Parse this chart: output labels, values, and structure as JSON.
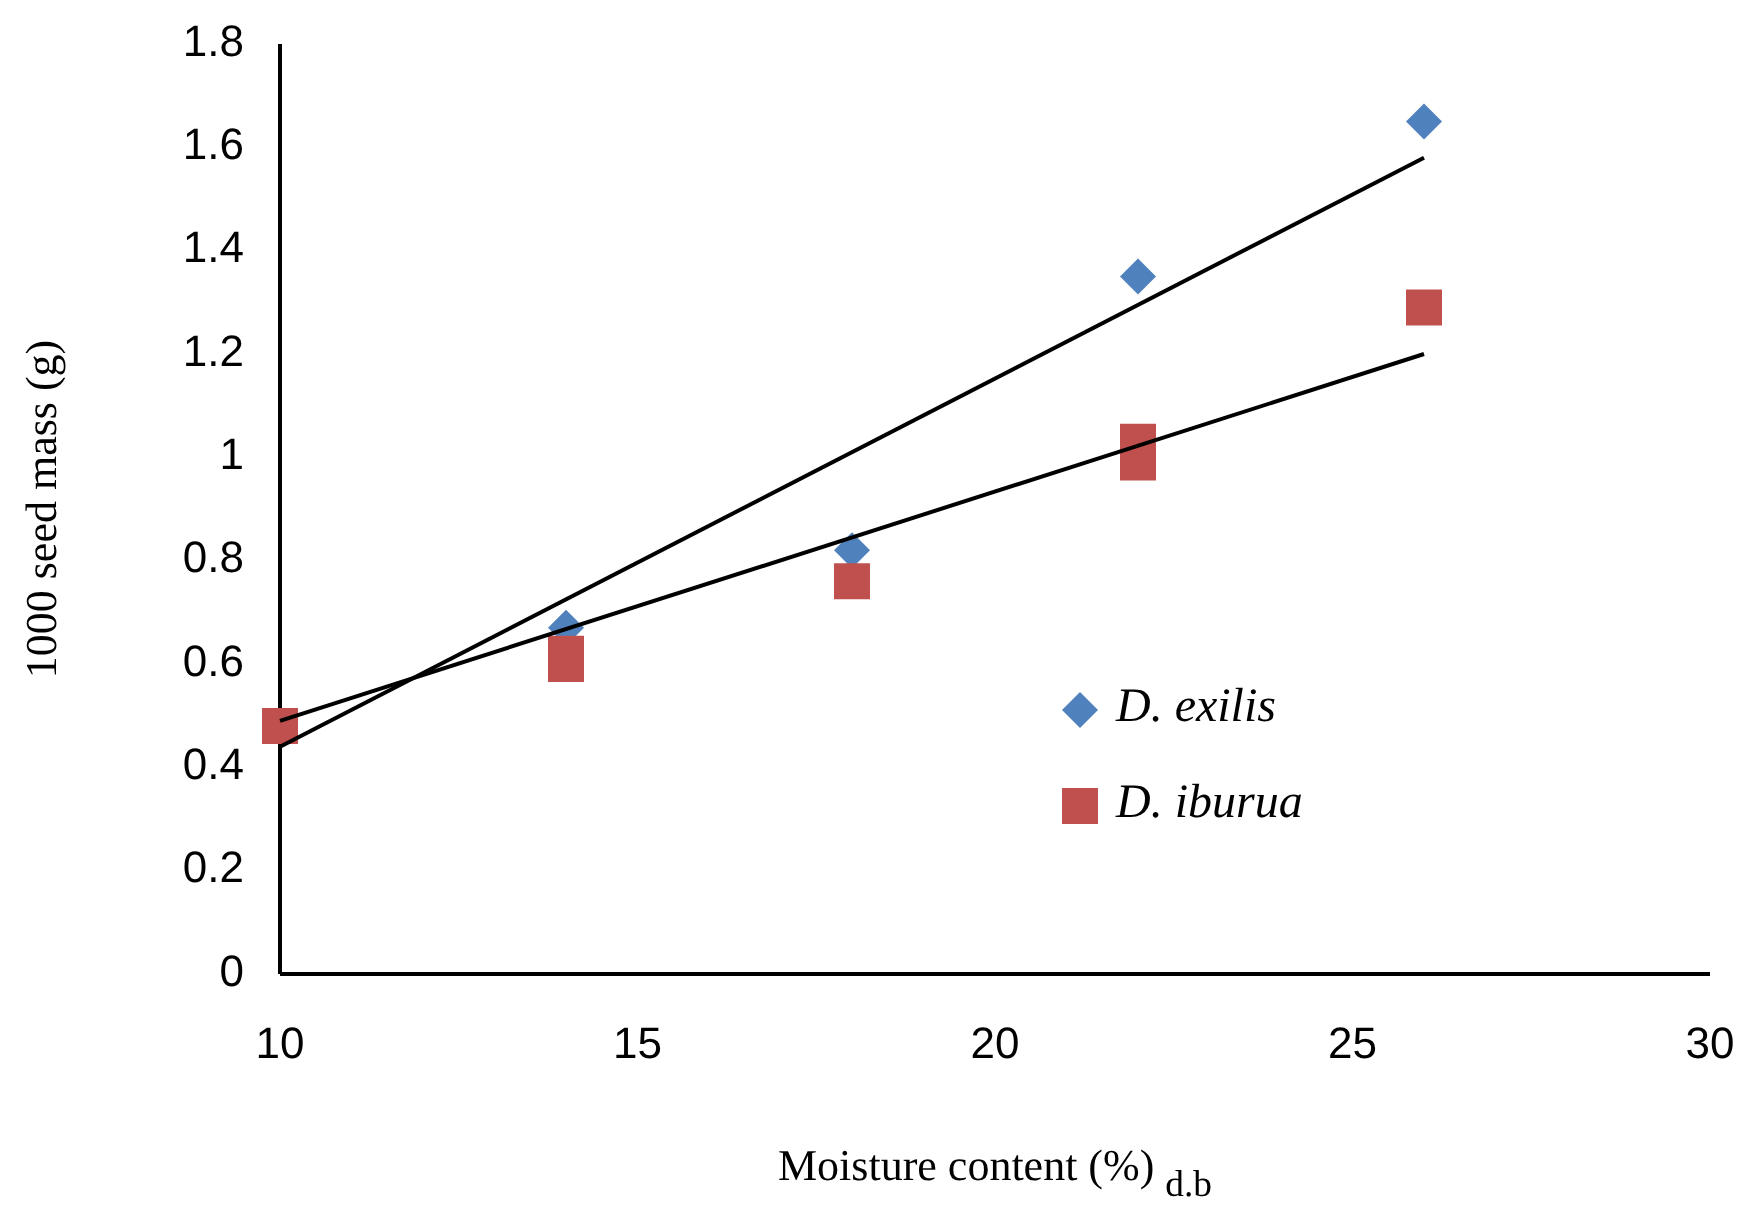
{
  "chart_data": {
    "type": "scatter",
    "xlabel": "Moisture content (%) $_{d.b}$",
    "ylabel": "1000 seed mass (g)",
    "xlim": [
      10,
      30
    ],
    "xticks": [
      10,
      15,
      20,
      25,
      30
    ],
    "ylim": [
      0,
      1.8
    ],
    "yticks": [
      0,
      0.2,
      0.4,
      0.6,
      0.8,
      1,
      1.2,
      1.4,
      1.6,
      1.8
    ],
    "grid": false,
    "legend": "right",
    "series": [
      {
        "name": "D. exilis",
        "color": "#4f81bd",
        "marker": "diamond",
        "x": [
          14,
          18,
          22,
          26
        ],
        "values": [
          0.67,
          0.82,
          1.35,
          1.65
        ]
      },
      {
        "name": "D. iburua",
        "color": "#c0504d",
        "marker": "square",
        "x": [
          10,
          14,
          14,
          18,
          22,
          22,
          26
        ],
        "values": [
          0.48,
          0.62,
          0.6,
          0.76,
          1.03,
          0.99,
          1.29
        ]
      },
      {
        "type": "line",
        "color": "#000000",
        "marker": "none",
        "x": [
          10,
          26
        ],
        "values": [
          0.44,
          1.58
        ]
      },
      {
        "type": "line",
        "color": "#000000",
        "marker": "none",
        "x": [
          10,
          26
        ],
        "values": [
          0.49,
          1.2
        ]
      }
    ]
  }
}
